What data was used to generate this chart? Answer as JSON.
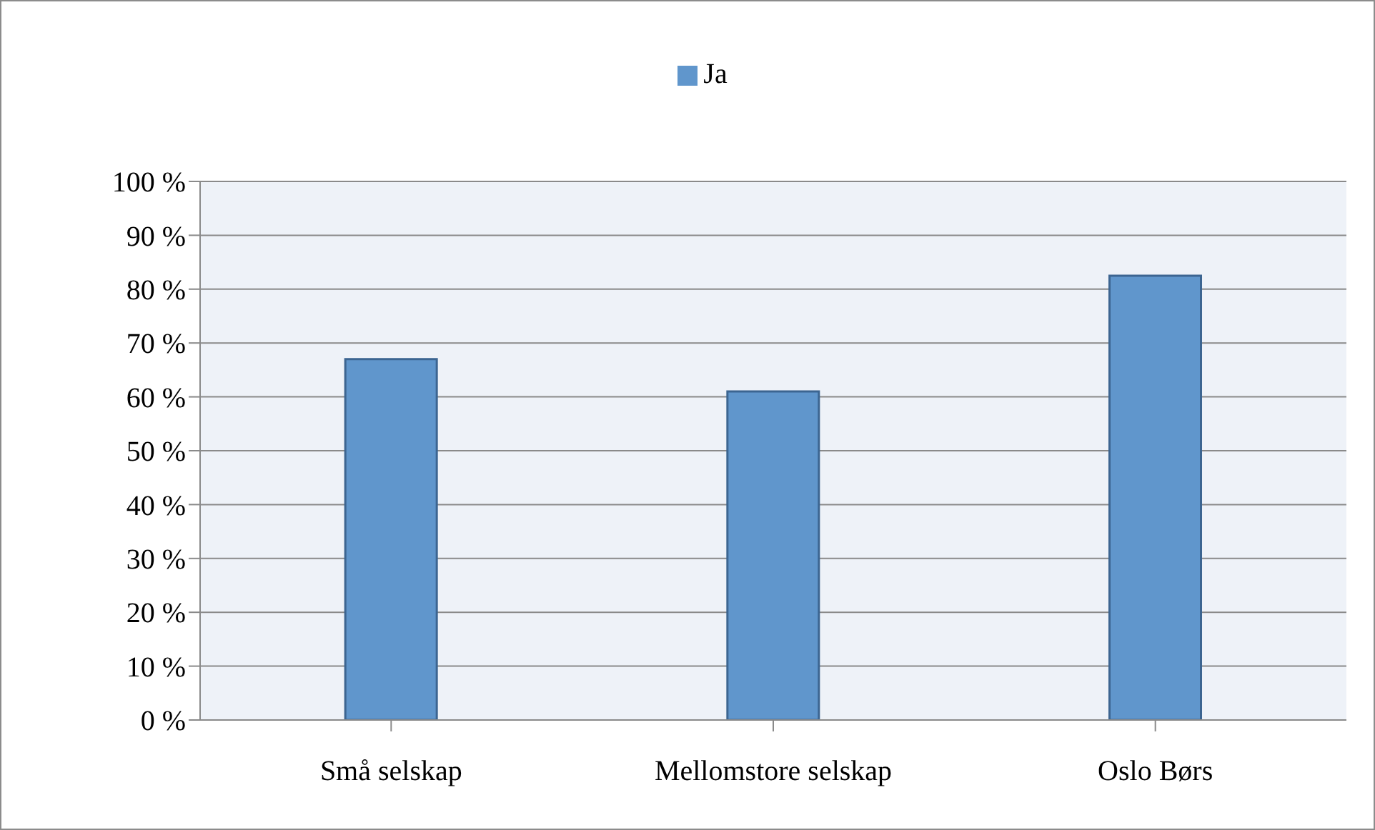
{
  "chart_data": {
    "type": "bar",
    "categories": [
      "Små selskap",
      "Mellomstore selskap",
      "Oslo Børs"
    ],
    "series": [
      {
        "name": "Ja",
        "color": "#6096cc",
        "values": [
          67,
          61,
          82.5
        ]
      }
    ],
    "ylim": [
      0,
      100
    ],
    "yticks": [
      {
        "value": 0,
        "label": "0 %"
      },
      {
        "value": 10,
        "label": "10 %"
      },
      {
        "value": 20,
        "label": "20 %"
      },
      {
        "value": 30,
        "label": "30 %"
      },
      {
        "value": 40,
        "label": "40 %"
      },
      {
        "value": 50,
        "label": "50 %"
      },
      {
        "value": 60,
        "label": "60 %"
      },
      {
        "value": 70,
        "label": "70 %"
      },
      {
        "value": 80,
        "label": "80 %"
      },
      {
        "value": 90,
        "label": "90 %"
      },
      {
        "value": 100,
        "label": "100 %"
      }
    ],
    "grid": "y",
    "legend": "top"
  }
}
